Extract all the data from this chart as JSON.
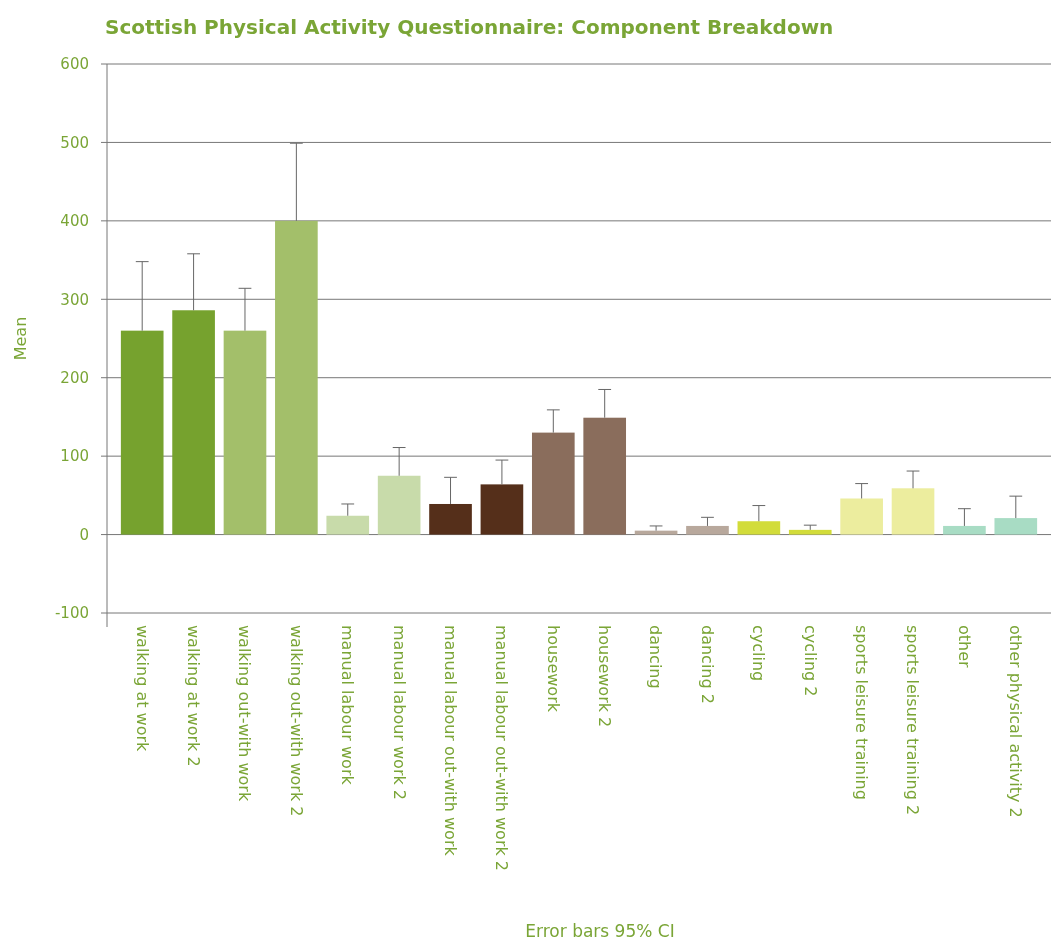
{
  "chart_data": {
    "type": "bar",
    "title": "Scottish Physical Activity Questionnaire: Component Breakdown",
    "ylabel": "Mean",
    "categories": [
      "walking at work",
      "walking at work 2",
      "walking out-with work",
      "walking out-with work 2",
      "manual labour work",
      "manual labour work 2",
      "manual labour out-with work",
      "manual labour out-with work 2",
      "housework",
      "housework 2",
      "dancing",
      "dancing 2",
      "cycling",
      "cycling 2",
      "sports leisure training",
      "sports leisure training 2",
      "other",
      "other physical activity 2"
    ],
    "values": [
      260,
      286,
      260,
      400,
      24,
      75,
      39,
      64,
      130,
      149,
      5,
      11,
      17,
      6,
      46,
      59,
      11,
      21
    ],
    "errors": [
      [
        260,
        348
      ],
      [
        286,
        358
      ],
      [
        260,
        314
      ],
      [
        400,
        499
      ],
      [
        24,
        39
      ],
      [
        75,
        111
      ],
      [
        39,
        73
      ],
      [
        64,
        95
      ],
      [
        130,
        159
      ],
      [
        149,
        185
      ],
      [
        5,
        11
      ],
      [
        11,
        22
      ],
      [
        17,
        37
      ],
      [
        6,
        12
      ],
      [
        46,
        65
      ],
      [
        59,
        81
      ],
      [
        11,
        33
      ],
      [
        21,
        49
      ]
    ],
    "colors": [
      "#76a22e",
      "#76a22e",
      "#a3bf6a",
      "#a3bf6a",
      "#c8dbaa",
      "#c8dbaa",
      "#552f1a",
      "#552f1a",
      "#8a6d5c",
      "#8a6d5c",
      "#b8a89c",
      "#b8a89c",
      "#d2dc3a",
      "#d2dc3a",
      "#eced9e",
      "#eced9e",
      "#a8dcc4",
      "#a8dcc4"
    ],
    "ylim": [
      -100,
      600
    ],
    "yticks": [
      -100,
      0,
      100,
      200,
      300,
      400,
      500,
      600
    ],
    "grid": "y",
    "annotations": [
      "Error bars 95% CI"
    ]
  }
}
